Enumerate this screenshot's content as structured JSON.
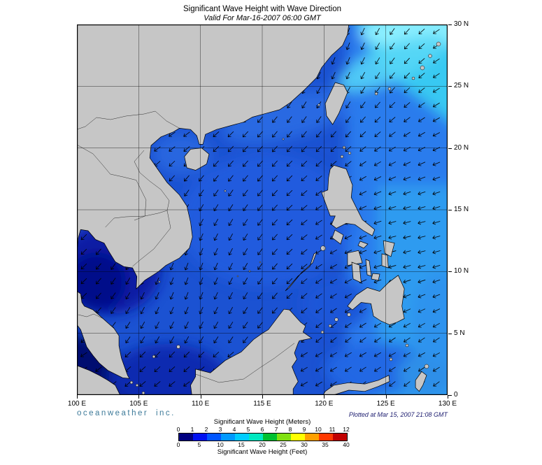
{
  "header": {
    "title": "Significant Wave Height with Wave Direction",
    "subtitle": "Valid For Mar-16-2007 06:00 GMT"
  },
  "footer": {
    "credit": "oceanweather inc.",
    "plotted": "Plotted at Mar 15, 2007 21:08 GMT"
  },
  "axes": {
    "lon": [
      "100 E",
      "105 E",
      "110 E",
      "115 E",
      "120 E",
      "125 E",
      "130 E"
    ],
    "lat": [
      "30 N",
      "25 N",
      "20 N",
      "15 N",
      "10 N",
      "5 N",
      "0"
    ]
  },
  "legend": {
    "meters_label": "Significant Wave Height (Meters)",
    "feet_label": "Significant Wave Height (Feet)",
    "meters_ticks": [
      "0",
      "1",
      "2",
      "3",
      "4",
      "5",
      "6",
      "7",
      "8",
      "9",
      "10",
      "11",
      "12"
    ],
    "feet_ticks": [
      0,
      5,
      10,
      15,
      20,
      25,
      30,
      35,
      40
    ],
    "colors": [
      "#000080",
      "#0010f0",
      "#0055ff",
      "#0099ff",
      "#00ccff",
      "#00e8c0",
      "#00c030",
      "#80e010",
      "#ffff00",
      "#ffa000",
      "#ff3800",
      "#c00000"
    ]
  },
  "map": {
    "land_color": "#c6c6c6",
    "ocean_color": "#1b52d2",
    "high_wave_color": "#8cefff",
    "low_wave_color": "#000d8a",
    "arrow_color": "#000000",
    "frame_color": "#000000"
  }
}
